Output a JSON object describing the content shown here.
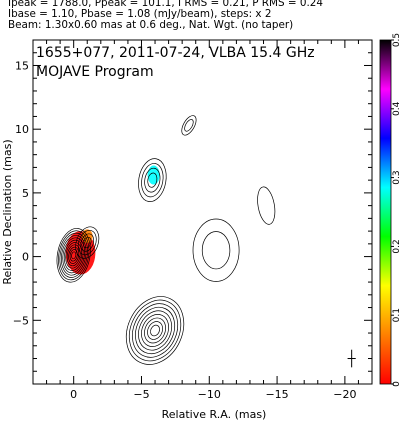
{
  "header": {
    "line1": "Ipeak = 1788.0, Ppeak = 101.1, I RMS = 0.21, P RMS = 0.24",
    "line2": "Ibase = 1.10, Pbase = 1.08 (mJy/beam), steps: x 2",
    "line3": "Beam: 1.30x0.60 mas at 0.6 deg., Nat. Wgt. (no taper)"
  },
  "chart_data": {
    "type": "contour-map",
    "title": "1655+077, 2011-07-24, VLBA 15.4 GHz",
    "subtitle": "MOJAVE Program",
    "xlabel": "Relative R.A. (mas)",
    "ylabel": "Relative Declination (mas)",
    "xlim": [
      3,
      -22
    ],
    "ylim": [
      -10,
      17
    ],
    "xticks": [
      0,
      -5,
      -10,
      -15,
      -20
    ],
    "xtick_labels": [
      "0",
      "−5",
      "−10",
      "−15",
      "−20"
    ],
    "yticks": [
      -5,
      0,
      5,
      10,
      15
    ],
    "ytick_labels": [
      "−5",
      "0",
      "5",
      "10",
      "15"
    ],
    "colorbar": {
      "ticks": [
        0,
        0.1,
        0.2,
        0.3,
        0.4,
        0.5
      ],
      "tick_labels": [
        "0",
        "0.1",
        "0.2",
        "0.3",
        "0.4",
        "0.5"
      ],
      "range": [
        0,
        0.5
      ],
      "colors": [
        "#ff0000",
        "#ff8000",
        "#ffff00",
        "#00ff00",
        "#00ffff",
        "#0000ff",
        "#ff00ff",
        "#000000"
      ]
    },
    "components": [
      {
        "name": "core",
        "x": 0.0,
        "y": 0.1,
        "levels": 11,
        "a": 1.2,
        "b": 2.0,
        "angle": 10
      },
      {
        "name": "inner-jet",
        "x": -1.0,
        "y": 1.1,
        "levels": 4,
        "a": 0.8,
        "b": 1.2,
        "angle": 20
      },
      {
        "name": "south-jet",
        "x": -6.0,
        "y": -5.8,
        "levels": 9,
        "a": 2.0,
        "b": 2.6,
        "angle": 25
      },
      {
        "name": "north-knot",
        "x": -5.8,
        "y": 6.0,
        "levels": 4,
        "a": 1.0,
        "b": 1.6,
        "angle": 10
      },
      {
        "name": "east-knot",
        "x": -10.5,
        "y": 0.5,
        "levels": 2,
        "a": 1.7,
        "b": 2.3,
        "angle": 0
      },
      {
        "name": "far-knot",
        "x": -14.2,
        "y": 4.0,
        "levels": 1,
        "a": 0.6,
        "b": 1.4,
        "angle": -10
      },
      {
        "name": "top-knot",
        "x": -8.5,
        "y": 10.3,
        "levels": 2,
        "a": 0.4,
        "b": 0.8,
        "angle": 30
      }
    ],
    "polarization_patches": [
      {
        "name": "core-pol",
        "x": -0.5,
        "y": 0.3,
        "rx": 1.1,
        "ry": 1.6,
        "value": 0.02
      },
      {
        "name": "inner-pol",
        "x": -1.0,
        "y": 1.6,
        "rx": 0.4,
        "ry": 0.5,
        "value": 0.08
      },
      {
        "name": "north-pol",
        "x": -5.9,
        "y": 6.4,
        "rx": 0.45,
        "ry": 0.7,
        "value": 0.3
      }
    ],
    "beam": {
      "major_mas": 1.3,
      "minor_mas": 0.6,
      "pa_deg": 0.6,
      "x": -20.5,
      "y": -8.0
    }
  }
}
